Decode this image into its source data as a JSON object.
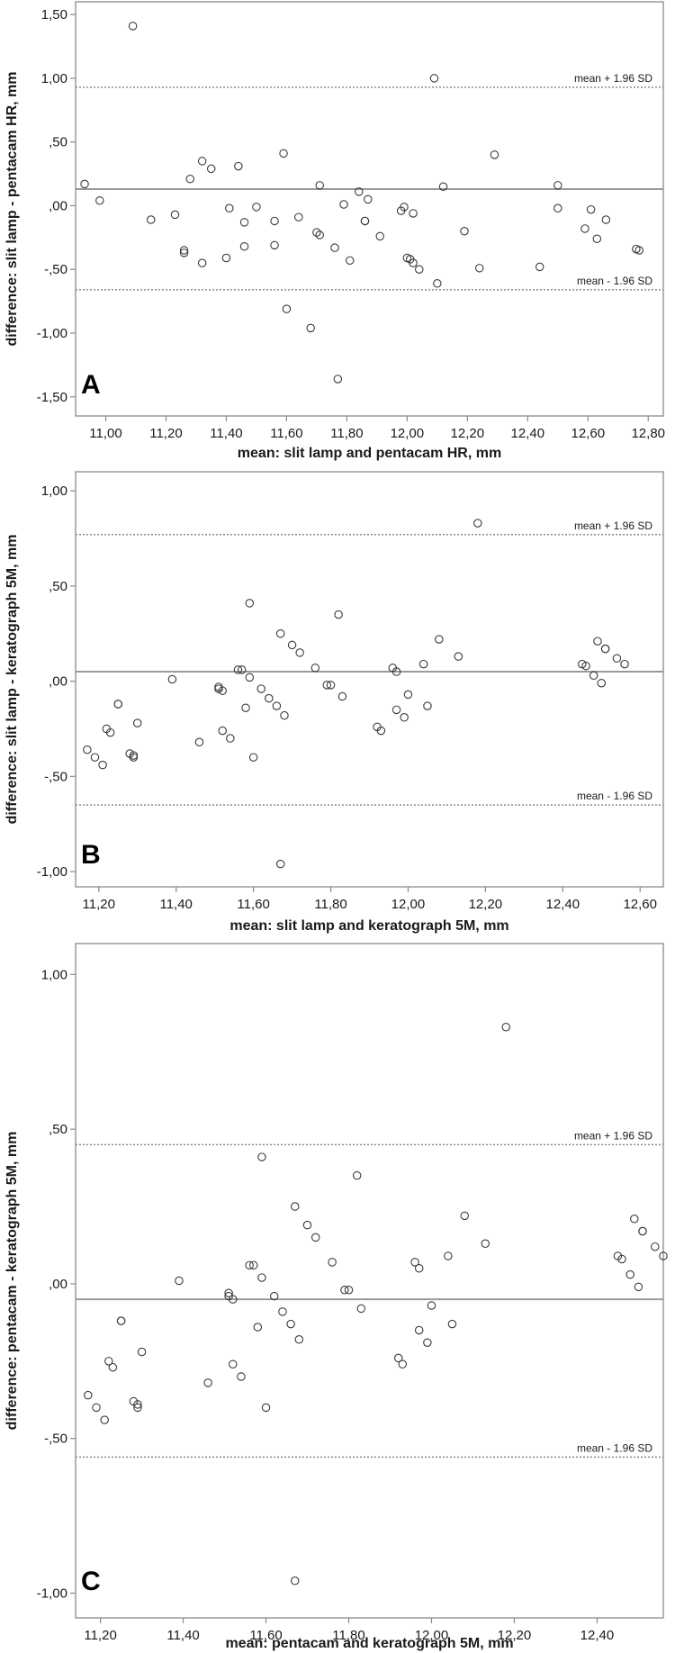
{
  "chart_data": [
    {
      "type": "scatter",
      "panel_label": "A",
      "xlabel": "mean: slit lamp and pentacam HR, mm",
      "ylabel": "difference: slit lamp - pentacam HR, mm",
      "xlim": [
        10.9,
        12.85
      ],
      "ylim": [
        -1.65,
        1.6
      ],
      "x_ticks": [
        11.0,
        11.2,
        11.4,
        11.6,
        11.8,
        12.0,
        12.2,
        12.4,
        12.6,
        12.8
      ],
      "x_tick_labels": [
        "11,00",
        "11,20",
        "11,40",
        "11,60",
        "11,80",
        "12,00",
        "12,20",
        "12,40",
        "12,60",
        "12,80"
      ],
      "y_ticks": [
        1.5,
        1.0,
        0.5,
        0.0,
        -0.5,
        -1.0,
        -1.5
      ],
      "y_tick_labels": [
        "1,50",
        "1,00",
        ",50",
        ",00",
        "-,50",
        "-1,00",
        "-1,50"
      ],
      "lines": [
        {
          "label": "mean + 1.96 SD",
          "y": 0.93,
          "style": "dotted"
        },
        {
          "label": "",
          "y": 0.13,
          "style": "solid"
        },
        {
          "label": "mean - 1.96 SD",
          "y": -0.66,
          "style": "dotted"
        }
      ],
      "grid": false,
      "points": [
        [
          10.93,
          0.17
        ],
        [
          10.98,
          0.04
        ],
        [
          11.09,
          1.41
        ],
        [
          11.15,
          -0.11
        ],
        [
          11.23,
          -0.07
        ],
        [
          11.26,
          -0.35
        ],
        [
          11.26,
          -0.37
        ],
        [
          11.28,
          0.21
        ],
        [
          11.32,
          0.35
        ],
        [
          11.32,
          -0.45
        ],
        [
          11.35,
          0.29
        ],
        [
          11.4,
          -0.41
        ],
        [
          11.41,
          -0.02
        ],
        [
          11.44,
          0.31
        ],
        [
          11.46,
          -0.13
        ],
        [
          11.46,
          -0.32
        ],
        [
          11.5,
          -0.01
        ],
        [
          11.56,
          -0.12
        ],
        [
          11.56,
          -0.31
        ],
        [
          11.59,
          0.41
        ],
        [
          11.6,
          -0.81
        ],
        [
          11.64,
          -0.09
        ],
        [
          11.68,
          -0.96
        ],
        [
          11.7,
          -0.21
        ],
        [
          11.71,
          -0.23
        ],
        [
          11.71,
          0.16
        ],
        [
          11.76,
          -0.33
        ],
        [
          11.77,
          -1.36
        ],
        [
          11.79,
          0.01
        ],
        [
          11.81,
          -0.43
        ],
        [
          11.84,
          0.11
        ],
        [
          11.86,
          -0.12
        ],
        [
          11.86,
          -0.12
        ],
        [
          11.87,
          0.05
        ],
        [
          11.91,
          -0.24
        ],
        [
          11.98,
          -0.04
        ],
        [
          11.99,
          -0.01
        ],
        [
          12.0,
          -0.41
        ],
        [
          12.01,
          -0.42
        ],
        [
          12.02,
          -0.45
        ],
        [
          12.02,
          -0.06
        ],
        [
          12.04,
          -0.5
        ],
        [
          12.09,
          1.0
        ],
        [
          12.1,
          -0.61
        ],
        [
          12.12,
          0.15
        ],
        [
          12.19,
          -0.2
        ],
        [
          12.24,
          -0.49
        ],
        [
          12.29,
          0.4
        ],
        [
          12.44,
          -0.48
        ],
        [
          12.5,
          -0.02
        ],
        [
          12.5,
          0.16
        ],
        [
          12.59,
          -0.18
        ],
        [
          12.61,
          -0.03
        ],
        [
          12.63,
          -0.26
        ],
        [
          12.66,
          -0.11
        ],
        [
          12.76,
          -0.34
        ],
        [
          12.77,
          -0.35
        ]
      ]
    },
    {
      "type": "scatter",
      "panel_label": "B",
      "xlabel": "mean: slit lamp and keratograph 5M, mm",
      "ylabel": "difference: slit lamp - keratograph 5M, mm",
      "xlim": [
        11.14,
        12.66
      ],
      "ylim": [
        -1.08,
        1.1
      ],
      "x_ticks": [
        11.2,
        11.4,
        11.6,
        11.8,
        12.0,
        12.2,
        12.4,
        12.6
      ],
      "x_tick_labels": [
        "11,20",
        "11,40",
        "11,60",
        "11,80",
        "12,00",
        "12,20",
        "12,40",
        "12,60"
      ],
      "y_ticks": [
        1.0,
        0.5,
        0.0,
        -0.5,
        -1.0
      ],
      "y_tick_labels": [
        "1,00",
        ",50",
        ",00",
        "-,50",
        "-1,00"
      ],
      "lines": [
        {
          "label": "mean + 1.96 SD",
          "y": 0.77,
          "style": "dotted"
        },
        {
          "label": "",
          "y": 0.05,
          "style": "solid"
        },
        {
          "label": "mean - 1.96 SD",
          "y": -0.65,
          "style": "dotted"
        }
      ],
      "grid": false,
      "points": [
        [
          11.17,
          -0.36
        ],
        [
          11.19,
          -0.4
        ],
        [
          11.21,
          -0.44
        ],
        [
          11.22,
          -0.25
        ],
        [
          11.23,
          -0.27
        ],
        [
          11.25,
          -0.12
        ],
        [
          11.25,
          -0.12
        ],
        [
          11.28,
          -0.38
        ],
        [
          11.29,
          -0.39
        ],
        [
          11.29,
          -0.4
        ],
        [
          11.3,
          -0.22
        ],
        [
          11.39,
          0.01
        ],
        [
          11.46,
          -0.32
        ],
        [
          11.51,
          -0.03
        ],
        [
          11.51,
          -0.04
        ],
        [
          11.52,
          -0.05
        ],
        [
          11.52,
          -0.26
        ],
        [
          11.54,
          -0.3
        ],
        [
          11.56,
          0.06
        ],
        [
          11.57,
          0.06
        ],
        [
          11.58,
          -0.14
        ],
        [
          11.59,
          0.41
        ],
        [
          11.59,
          0.02
        ],
        [
          11.6,
          -0.4
        ],
        [
          11.62,
          -0.04
        ],
        [
          11.64,
          -0.09
        ],
        [
          11.66,
          -0.13
        ],
        [
          11.67,
          0.25
        ],
        [
          11.67,
          -0.96
        ],
        [
          11.68,
          -0.18
        ],
        [
          11.7,
          0.19
        ],
        [
          11.72,
          0.15
        ],
        [
          11.76,
          0.07
        ],
        [
          11.79,
          -0.02
        ],
        [
          11.8,
          -0.02
        ],
        [
          11.82,
          0.35
        ],
        [
          11.83,
          -0.08
        ],
        [
          11.92,
          -0.24
        ],
        [
          11.93,
          -0.26
        ],
        [
          11.96,
          0.07
        ],
        [
          11.97,
          0.05
        ],
        [
          11.97,
          -0.15
        ],
        [
          11.99,
          -0.19
        ],
        [
          12.0,
          -0.07
        ],
        [
          12.04,
          0.09
        ],
        [
          12.05,
          -0.13
        ],
        [
          12.08,
          0.22
        ],
        [
          12.13,
          0.13
        ],
        [
          12.18,
          0.83
        ],
        [
          12.45,
          0.09
        ],
        [
          12.46,
          0.08
        ],
        [
          12.48,
          0.03
        ],
        [
          12.49,
          0.21
        ],
        [
          12.5,
          -0.01
        ],
        [
          12.51,
          0.17
        ],
        [
          12.51,
          0.17
        ],
        [
          12.54,
          0.12
        ],
        [
          12.56,
          0.09
        ]
      ]
    },
    {
      "type": "scatter",
      "panel_label": "C",
      "xlabel": "mean: pentacam and keratograph 5M, mm",
      "ylabel": "difference: pentacam - keratograph 5M, mm",
      "xlim": [
        11.14,
        12.56
      ],
      "ylim": [
        -1.08,
        1.1
      ],
      "x_ticks": [
        11.2,
        11.4,
        11.6,
        11.8,
        12.0,
        12.2,
        12.4
      ],
      "x_tick_labels": [
        "11,20",
        "11,40",
        "11,60",
        "11,80",
        "12,00",
        "12,20",
        "12,40"
      ],
      "y_ticks": [
        1.0,
        0.5,
        0.0,
        -0.5,
        -1.0
      ],
      "y_tick_labels": [
        "1,00",
        ",50",
        ",00",
        "-,50",
        "-1,00"
      ],
      "lines": [
        {
          "label": "mean + 1.96 SD",
          "y": 0.45,
          "style": "dotted"
        },
        {
          "label": "",
          "y": -0.05,
          "style": "solid"
        },
        {
          "label": "mean - 1.96 SD",
          "y": -0.56,
          "style": "dotted"
        }
      ],
      "grid": false,
      "points": [
        [
          11.17,
          -0.36
        ],
        [
          11.19,
          -0.4
        ],
        [
          11.21,
          -0.44
        ],
        [
          11.22,
          -0.25
        ],
        [
          11.23,
          -0.27
        ],
        [
          11.25,
          -0.12
        ],
        [
          11.25,
          -0.12
        ],
        [
          11.28,
          -0.38
        ],
        [
          11.29,
          -0.39
        ],
        [
          11.29,
          -0.4
        ],
        [
          11.3,
          -0.22
        ],
        [
          11.39,
          0.01
        ],
        [
          11.46,
          -0.32
        ],
        [
          11.51,
          -0.03
        ],
        [
          11.51,
          -0.04
        ],
        [
          11.52,
          -0.05
        ],
        [
          11.52,
          -0.26
        ],
        [
          11.54,
          -0.3
        ],
        [
          11.56,
          0.06
        ],
        [
          11.57,
          0.06
        ],
        [
          11.58,
          -0.14
        ],
        [
          11.59,
          0.41
        ],
        [
          11.59,
          0.02
        ],
        [
          11.6,
          -0.4
        ],
        [
          11.62,
          -0.04
        ],
        [
          11.64,
          -0.09
        ],
        [
          11.66,
          -0.13
        ],
        [
          11.67,
          0.25
        ],
        [
          11.67,
          -0.96
        ],
        [
          11.68,
          -0.18
        ],
        [
          11.7,
          0.19
        ],
        [
          11.72,
          0.15
        ],
        [
          11.76,
          0.07
        ],
        [
          11.79,
          -0.02
        ],
        [
          11.8,
          -0.02
        ],
        [
          11.82,
          0.35
        ],
        [
          11.83,
          -0.08
        ],
        [
          11.92,
          -0.24
        ],
        [
          11.93,
          -0.26
        ],
        [
          11.96,
          0.07
        ],
        [
          11.97,
          0.05
        ],
        [
          11.97,
          -0.15
        ],
        [
          11.99,
          -0.19
        ],
        [
          12.0,
          -0.07
        ],
        [
          12.04,
          0.09
        ],
        [
          12.05,
          -0.13
        ],
        [
          12.08,
          0.22
        ],
        [
          12.13,
          0.13
        ],
        [
          12.18,
          0.83
        ],
        [
          12.45,
          0.09
        ],
        [
          12.46,
          0.08
        ],
        [
          12.48,
          0.03
        ],
        [
          12.49,
          0.21
        ],
        [
          12.5,
          -0.01
        ],
        [
          12.51,
          0.17
        ],
        [
          12.51,
          0.17
        ],
        [
          12.54,
          0.12
        ],
        [
          12.56,
          0.09
        ]
      ]
    }
  ],
  "colors": {
    "frame": "#8a8a8a",
    "mean_line": "#9a9a9a",
    "limit_line": "#8a8a8a",
    "marker": "#3a3a3a"
  }
}
